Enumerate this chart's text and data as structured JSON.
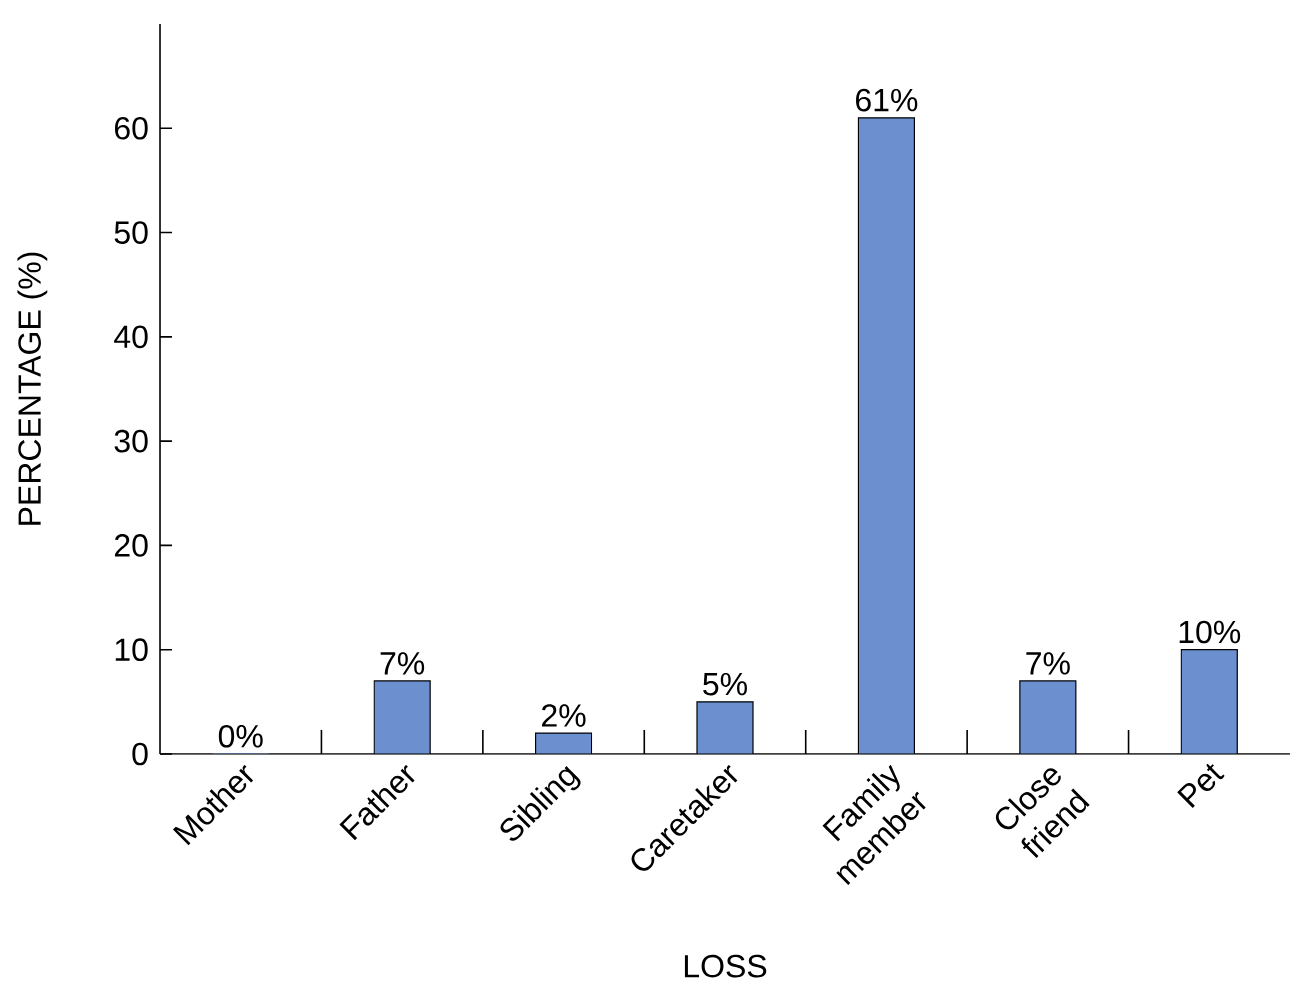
{
  "chart_data": {
    "type": "bar",
    "xlabel": "LOSS",
    "ylabel": "PERCENTAGE (%)",
    "categories": [
      "Mother",
      "Father",
      "Sibling",
      "Caretaker",
      "Family member",
      "Close friend",
      "Pet"
    ],
    "values": [
      0,
      7,
      2,
      5,
      61,
      7,
      10
    ],
    "value_labels": [
      "0%",
      "7%",
      "2%",
      "5%",
      "61%",
      "7%",
      "10%"
    ],
    "color": "#6b8fcf",
    "ylim": [
      0,
      70
    ],
    "yticks": [
      0,
      10,
      20,
      30,
      40,
      50,
      60
    ],
    "grid": false
  }
}
